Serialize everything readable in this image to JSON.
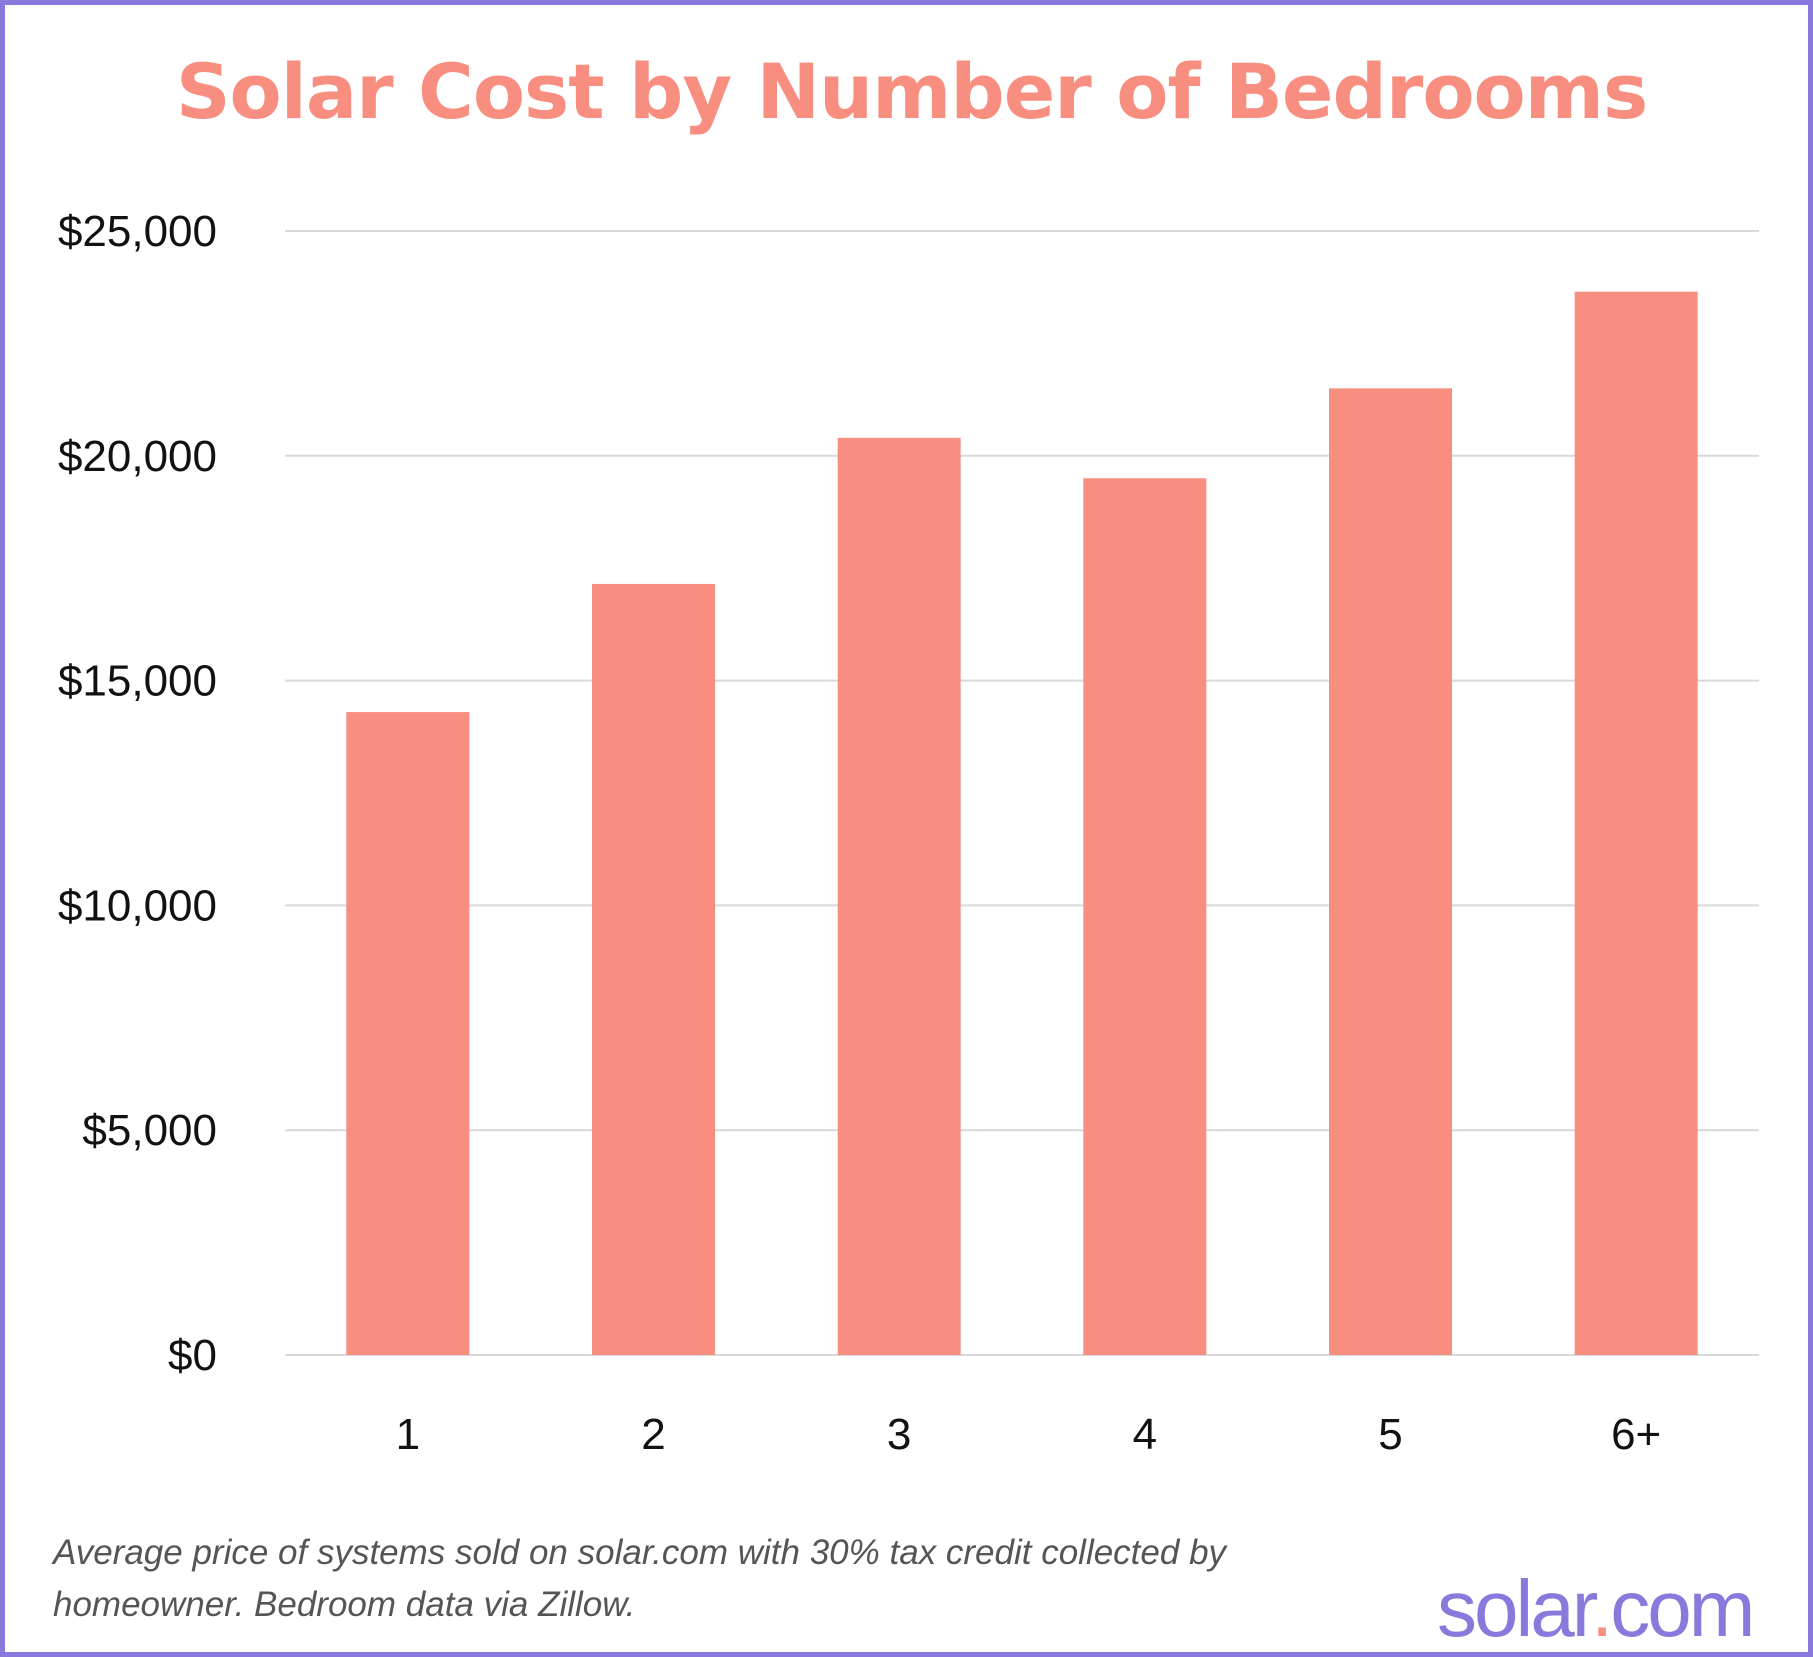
{
  "colors": {
    "bar": "#f88e7f",
    "title": "#f88e7f",
    "frame": "#8b78dc",
    "grid": "#d9d9d9",
    "logo": "#8b78dc",
    "logo_dot": "#f88e7f"
  },
  "chart_data": {
    "type": "bar",
    "title": "Solar Cost by Number of Bedrooms",
    "xlabel": "",
    "ylabel": "",
    "categories": [
      "1",
      "2",
      "3",
      "4",
      "5",
      "6+"
    ],
    "values": [
      14300,
      17150,
      20400,
      19500,
      21500,
      23650
    ],
    "ylim": [
      0,
      25000
    ],
    "yticks": [
      0,
      5000,
      10000,
      15000,
      20000,
      25000
    ],
    "ytick_labels": [
      "$0",
      "$5,000",
      "$10,000",
      "$15,000",
      "$20,000",
      "$25,000"
    ],
    "grid": true
  },
  "footnote": {
    "line1": "Average price of systems sold on solar.com with 30% tax credit collected by",
    "line2": "homeowner. Bedroom data via Zillow."
  },
  "logo": {
    "part1": "solar",
    "dot": ".",
    "part2": "com"
  }
}
